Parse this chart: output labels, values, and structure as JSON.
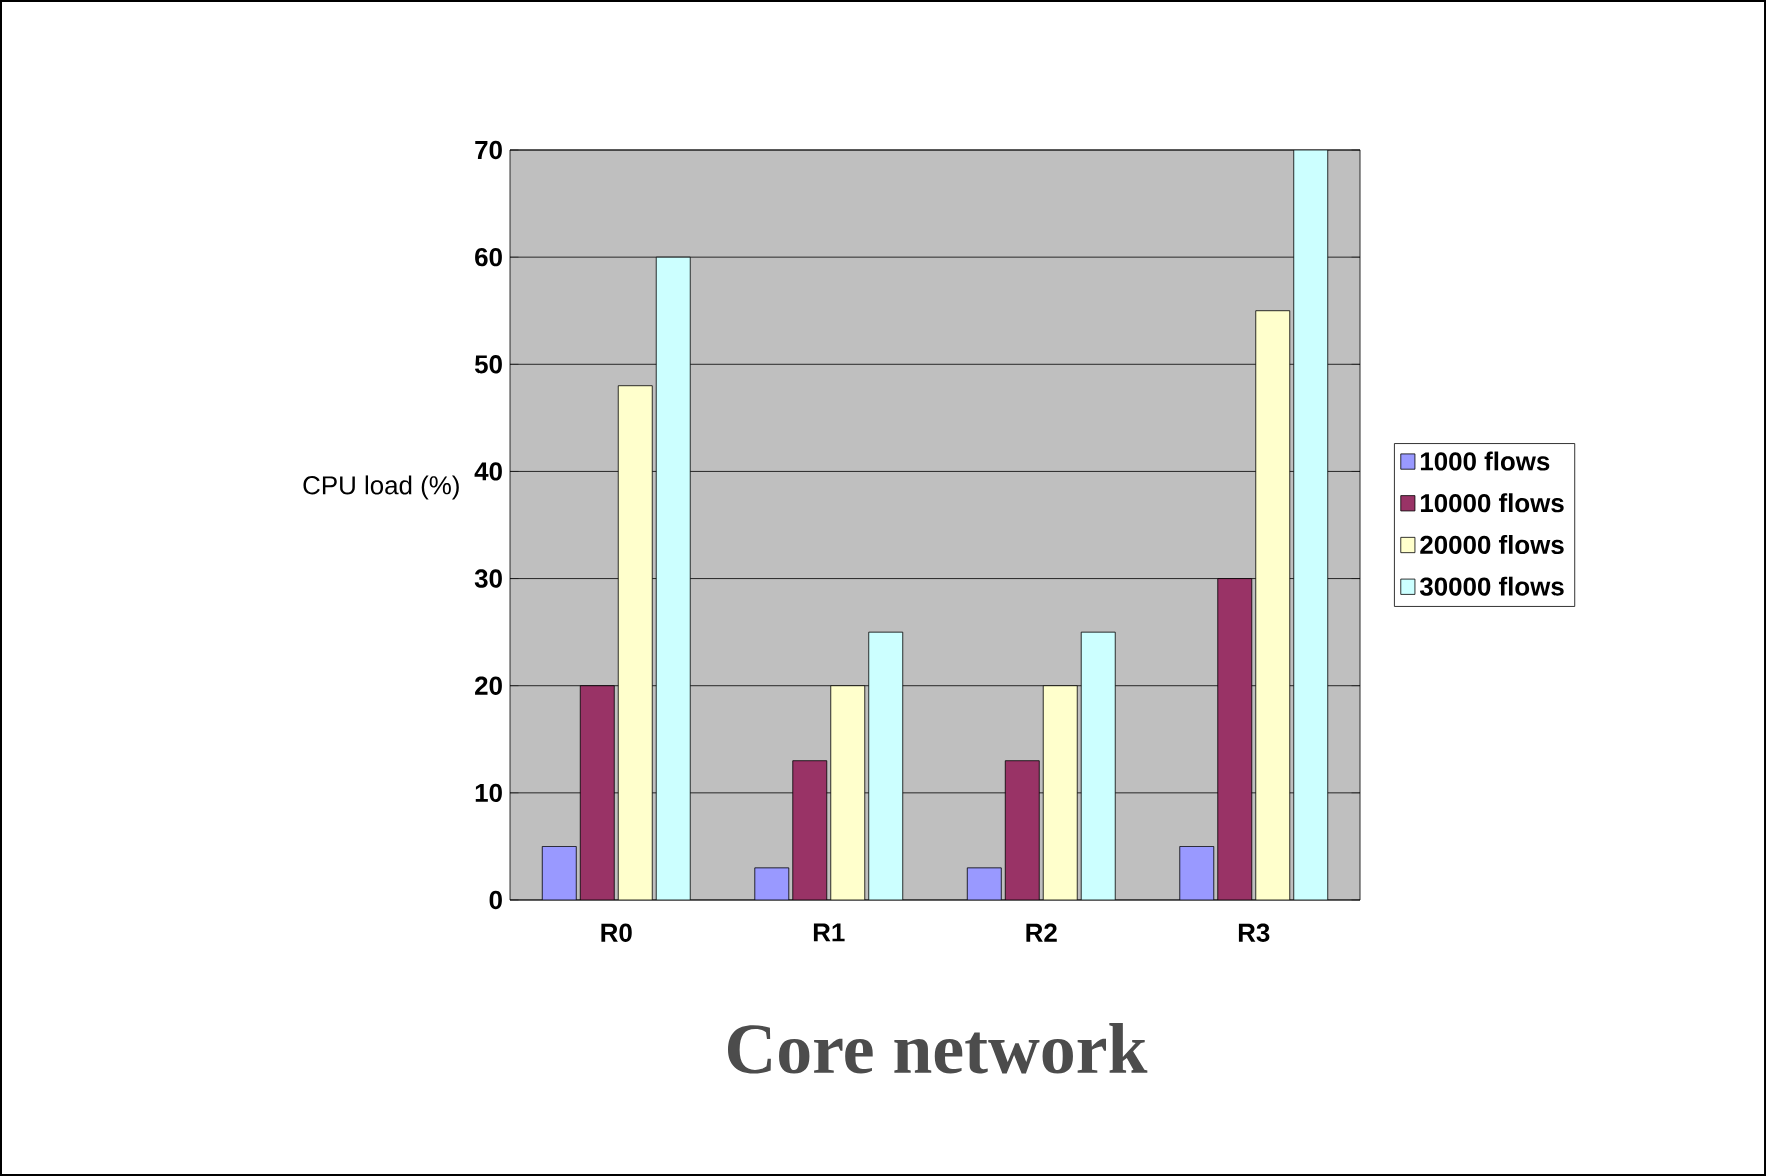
{
  "chart_data": {
    "type": "bar",
    "ylabel": "CPU load (%)",
    "categories": [
      "R0",
      "R1",
      "R2",
      "R3"
    ],
    "series": [
      {
        "name": "1000 flows",
        "color": "#9999ff",
        "values": [
          5,
          3,
          3,
          5
        ]
      },
      {
        "name": "10000 flows",
        "color": "#993366",
        "values": [
          20,
          13,
          13,
          30
        ]
      },
      {
        "name": "20000 flows",
        "color": "#ffffcc",
        "values": [
          48,
          20,
          20,
          55
        ]
      },
      {
        "name": "30000 flows",
        "color": "#ccffff",
        "values": [
          60,
          25,
          25,
          70
        ]
      }
    ],
    "ylim": [
      0,
      70
    ],
    "yticks": [
      0,
      10,
      20,
      30,
      40,
      50,
      60,
      70
    ],
    "grid": "y",
    "legend": "right",
    "annotations": [
      "Core network"
    ]
  }
}
